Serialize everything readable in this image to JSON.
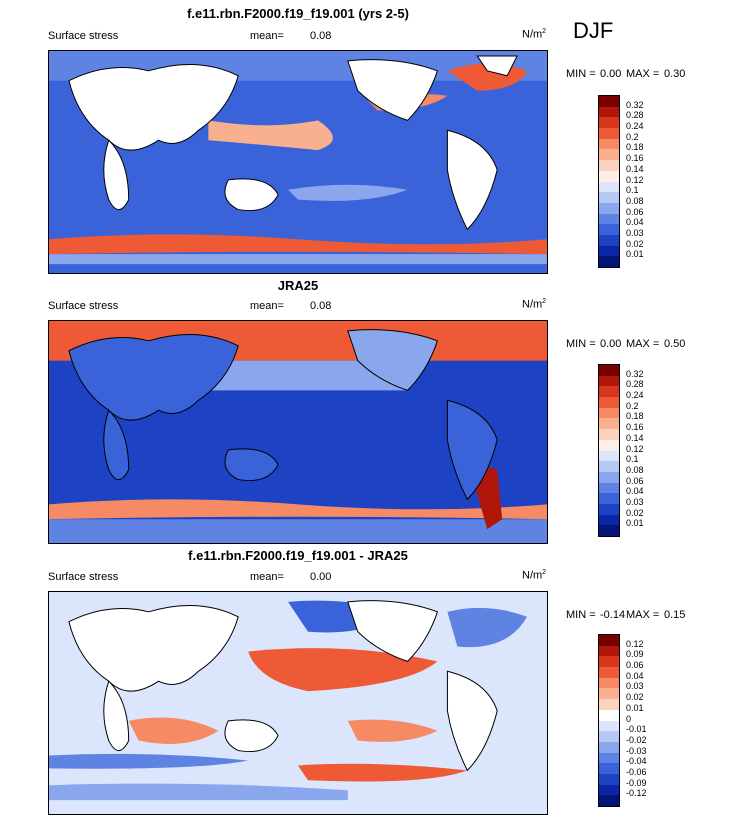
{
  "season": "DJF",
  "panels": [
    {
      "title": "f.e11.rbn.F2000.f19_f19.001 (yrs 2-5)",
      "variable": "Surface stress",
      "mean_label": "mean=",
      "mean_value": "0.08",
      "units": "N/m",
      "units_sup": "2",
      "min_label": "MIN =",
      "min_value": "0.00",
      "max_label": "MAX =",
      "max_value": "0.30",
      "colorbar_labels": [
        "0.32",
        "0.28",
        "0.24",
        "0.2",
        "0.18",
        "0.16",
        "0.14",
        "0.12",
        "0.1",
        "0.08",
        "0.06",
        "0.04",
        "0.03",
        "0.02",
        "0.01"
      ]
    },
    {
      "title": "JRA25",
      "variable": "Surface stress",
      "mean_label": "mean=",
      "mean_value": "0.08",
      "units": "N/m",
      "units_sup": "2",
      "min_label": "MIN =",
      "min_value": "0.00",
      "max_label": "MAX =",
      "max_value": "0.50",
      "colorbar_labels": [
        "0.32",
        "0.28",
        "0.24",
        "0.2",
        "0.18",
        "0.16",
        "0.14",
        "0.12",
        "0.1",
        "0.08",
        "0.06",
        "0.04",
        "0.03",
        "0.02",
        "0.01"
      ]
    },
    {
      "title": "f.e11.rbn.F2000.f19_f19.001 - JRA25",
      "variable": "Surface stress",
      "mean_label": "mean=",
      "mean_value": "0.00",
      "units": "N/m",
      "units_sup": "2",
      "min_label": "MIN =",
      "min_value": "-0.14",
      "max_label": "MAX =",
      "max_value": "0.15",
      "colorbar_labels": [
        "0.12",
        "0.09",
        "0.06",
        "0.04",
        "0.03",
        "0.02",
        "0.01",
        "0",
        "-0.01",
        "-0.02",
        "-0.03",
        "-0.04",
        "-0.06",
        "-0.09",
        "-0.12"
      ]
    }
  ],
  "colors": {
    "abs_scale": [
      "#7a0000",
      "#b0160a",
      "#d9351c",
      "#ee5a36",
      "#f58a64",
      "#f9b08e",
      "#fbd2bd",
      "#fdeee6",
      "#dbe5fb",
      "#b6c8f4",
      "#8aa6ec",
      "#5f83e3",
      "#3b63d9",
      "#1d43c4",
      "#0a26a6",
      "#04157a"
    ],
    "diff_scale": [
      "#7a0000",
      "#b0160a",
      "#d9351c",
      "#ee5a36",
      "#f58a64",
      "#f9b08e",
      "#fbd2bd",
      "#ffffff",
      "#dbe5fb",
      "#b6c8f4",
      "#8aa6ec",
      "#5f83e3",
      "#3b63d9",
      "#1d43c4",
      "#0a26a6",
      "#04157a"
    ],
    "land": "#ffffff",
    "coast": "#000000"
  }
}
